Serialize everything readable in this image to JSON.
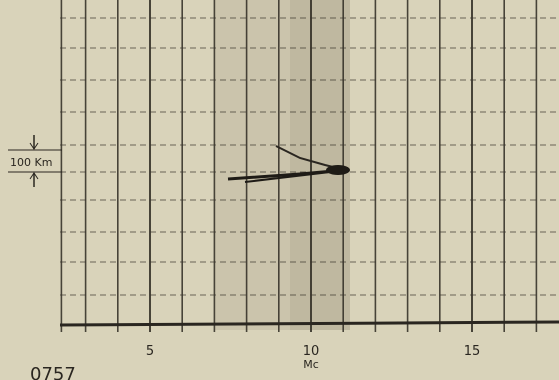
{
  "axis": {
    "ticks": [
      "5",
      "10",
      "15"
    ],
    "unit": "Mc"
  },
  "height_marker": "100 Km",
  "time_stamp": "0757"
}
